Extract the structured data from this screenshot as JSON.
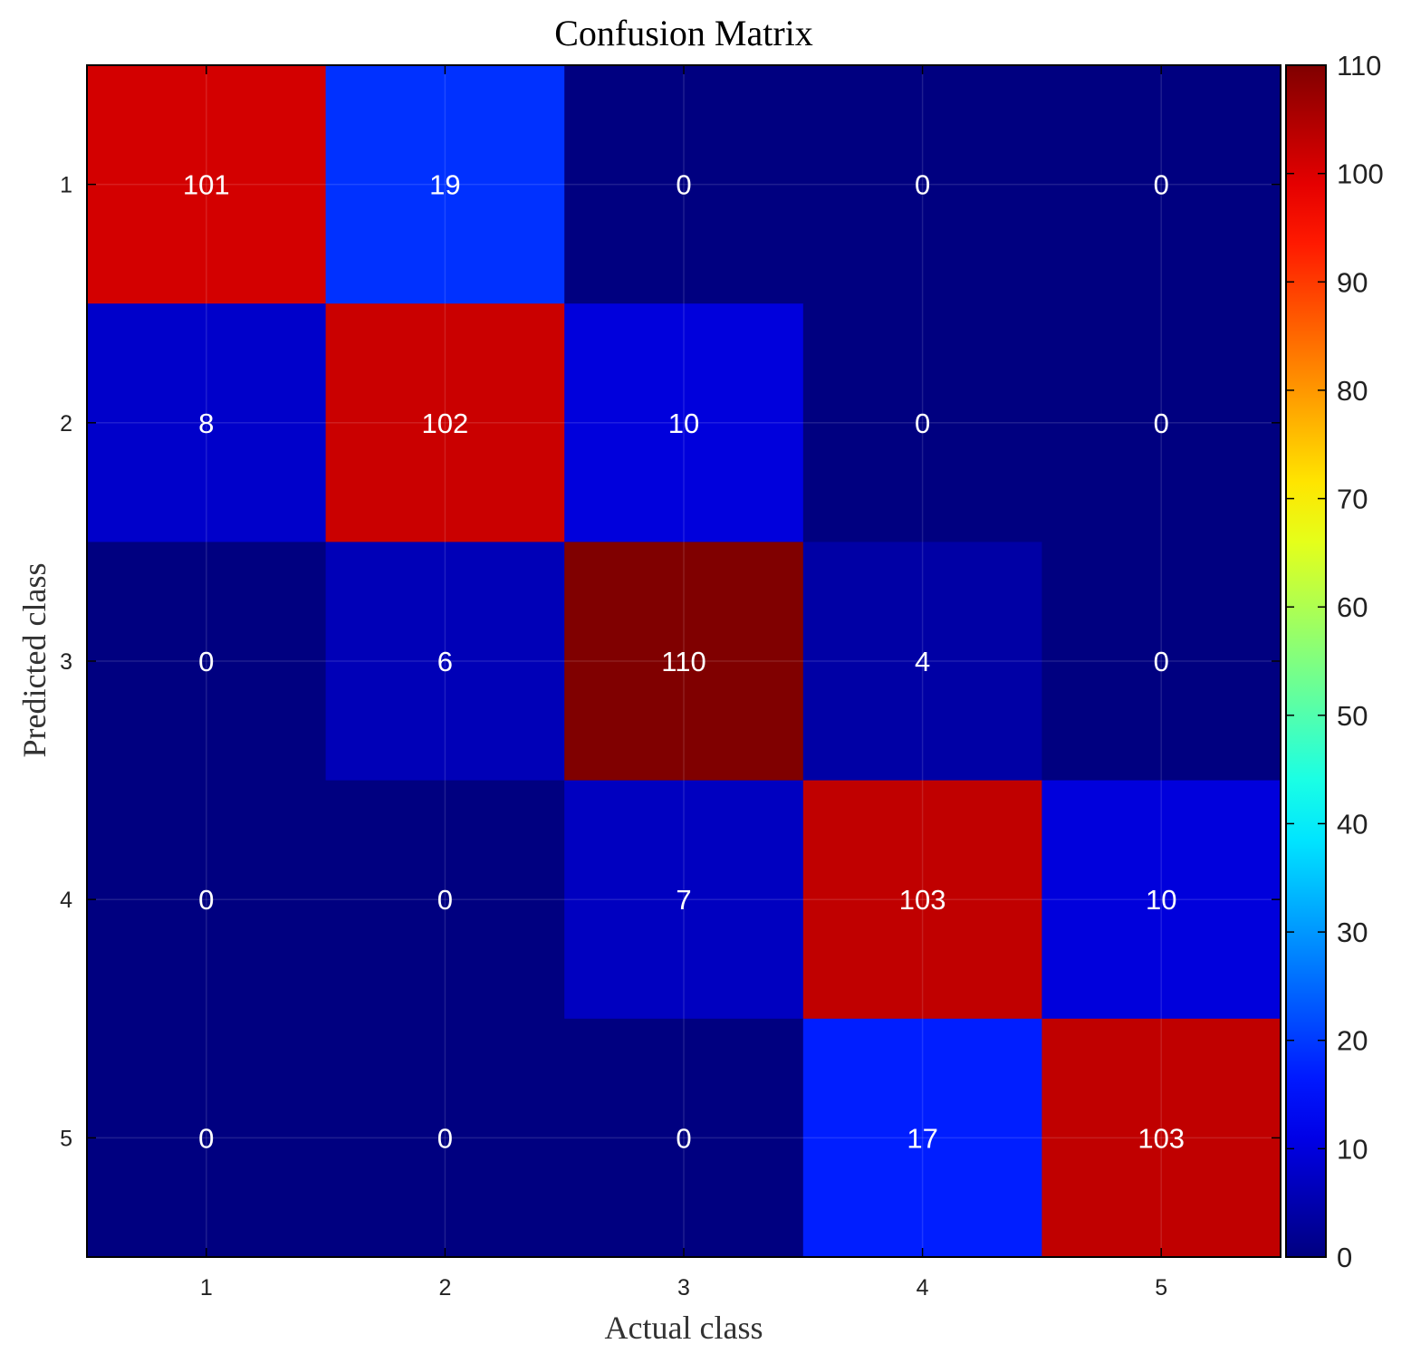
{
  "chart_data": {
    "type": "heatmap",
    "title": "Confusion Matrix",
    "xlabel": "Actual class",
    "ylabel": "Predicted class",
    "x_categories": [
      "1",
      "2",
      "3",
      "4",
      "5"
    ],
    "y_categories": [
      "1",
      "2",
      "3",
      "4",
      "5"
    ],
    "values": [
      [
        101,
        19,
        0,
        0,
        0
      ],
      [
        8,
        102,
        10,
        0,
        0
      ],
      [
        0,
        6,
        110,
        4,
        0
      ],
      [
        0,
        0,
        7,
        103,
        10
      ],
      [
        0,
        0,
        0,
        17,
        103
      ]
    ],
    "colormap": "jet",
    "color_range": [
      0,
      110
    ],
    "colorbar_ticks": [
      0,
      10,
      20,
      30,
      40,
      50,
      60,
      70,
      80,
      90,
      100,
      110
    ],
    "cell_text_color": "#ffffff",
    "grid": true
  }
}
